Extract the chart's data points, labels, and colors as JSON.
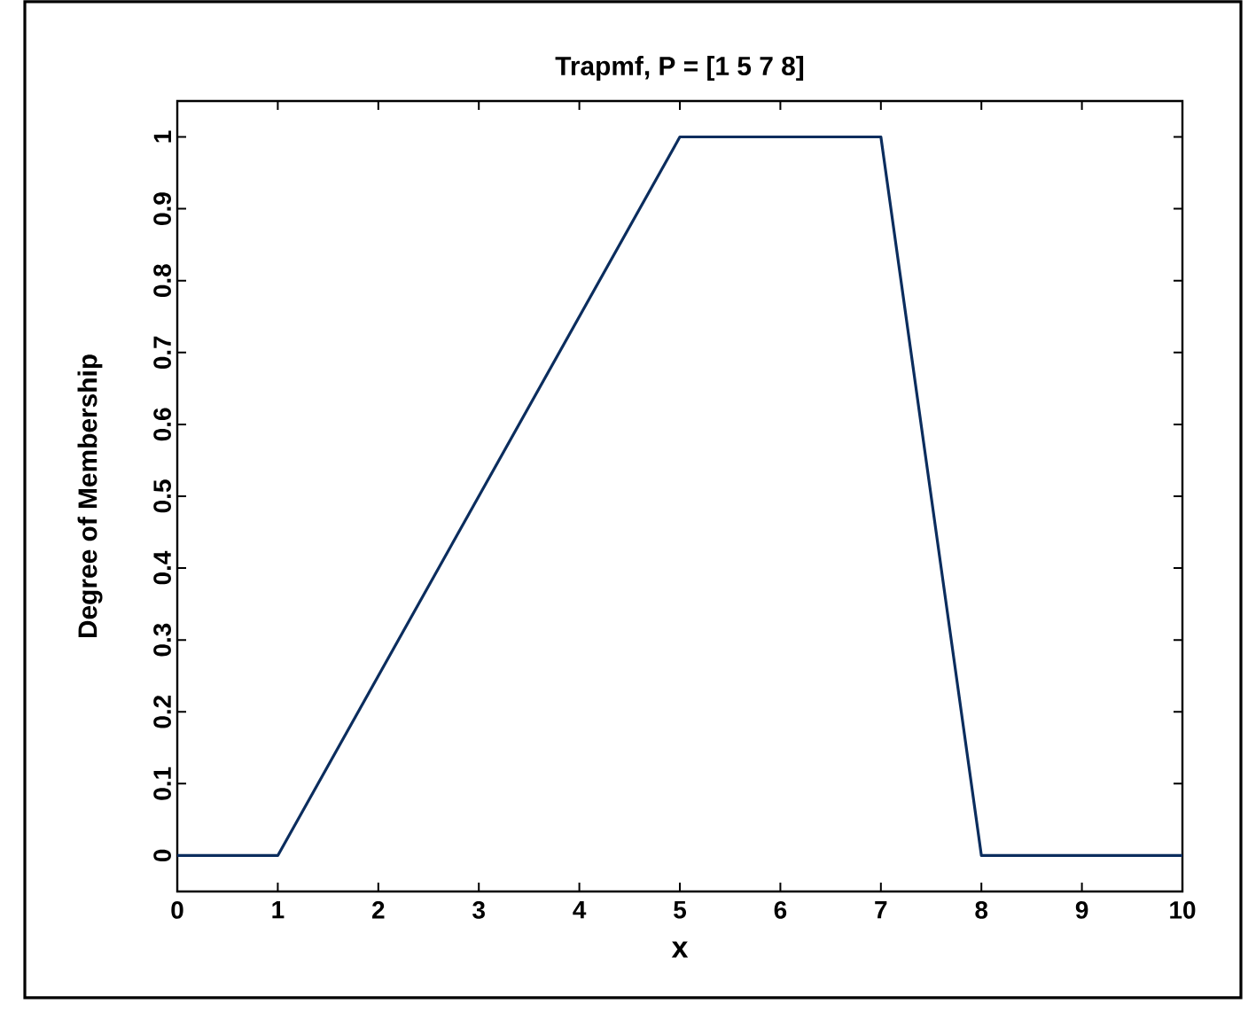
{
  "chart_data": {
    "type": "line",
    "title": "Trapmf, P = [1 5 7 8]",
    "xlabel": "x",
    "ylabel": "Degree of Membership",
    "x": [
      0,
      1,
      5,
      7,
      8,
      10
    ],
    "series": [
      {
        "color": "#0b2d5e",
        "values": [
          0,
          0,
          1,
          1,
          0,
          0
        ]
      }
    ],
    "xlim": [
      0,
      10
    ],
    "ylim": [
      -0.05,
      1.05
    ],
    "xticks": [
      0,
      1,
      2,
      3,
      4,
      5,
      6,
      7,
      8,
      9,
      10
    ],
    "yticks": [
      0,
      0.1,
      0.2,
      0.3,
      0.4,
      0.5,
      0.6,
      0.7,
      0.8,
      0.9,
      1
    ],
    "grid": false,
    "marker": "none",
    "line_style": "solid"
  }
}
